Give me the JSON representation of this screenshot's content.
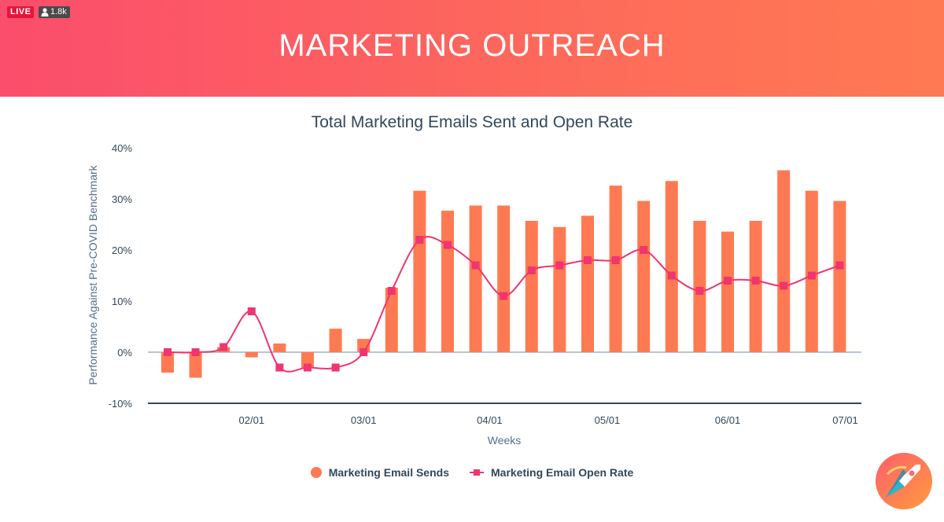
{
  "stream": {
    "live_label": "LIVE",
    "viewers": "1.8k",
    "viewer_icon": "person-icon"
  },
  "header": {
    "title": "MARKETING OUTREACH"
  },
  "colors": {
    "header_start": "#fb4d6c",
    "header_end": "#ff7a52",
    "bars": "#ff7a52",
    "line": "#f0356f",
    "text": "#33475b"
  },
  "chart_data": {
    "type": "bar",
    "title": "Total Marketing Emails Sent and Open Rate",
    "xlabel": "Weeks",
    "ylabel": "Performance Against Pre-COVID Benchmark",
    "ylim": [
      -10,
      40
    ],
    "yticks": [
      -10,
      0,
      10,
      20,
      30,
      40
    ],
    "ytick_labels": [
      "-10%",
      "0%",
      "10%",
      "20%",
      "30%",
      "40%"
    ],
    "xticks": [
      "02/01",
      "03/01",
      "04/01",
      "05/01",
      "06/01",
      "07/01"
    ],
    "xtick_positions": [
      3,
      7,
      11.5,
      15.7,
      20,
      24.2
    ],
    "x_count": 25,
    "grid": false,
    "legend_position": "bottom",
    "series": [
      {
        "name": "Marketing Email Sends",
        "type": "bar",
        "values": [
          -4,
          -5,
          1,
          -1,
          1.7,
          -3,
          4.6,
          2.6,
          12.6,
          31.6,
          27.7,
          28.7,
          28.7,
          25.7,
          24.5,
          26.7,
          32.6,
          29.6,
          33.5,
          25.7,
          23.6,
          25.7,
          35.6,
          31.6,
          29.6
        ]
      },
      {
        "name": "Marketing Email Open Rate",
        "type": "line",
        "values": [
          0,
          0,
          1,
          8,
          -3,
          -3,
          -3,
          0,
          12,
          22,
          21,
          17,
          11,
          16,
          17,
          18,
          18,
          20,
          15,
          12,
          14,
          14,
          13,
          15,
          17
        ]
      }
    ]
  }
}
